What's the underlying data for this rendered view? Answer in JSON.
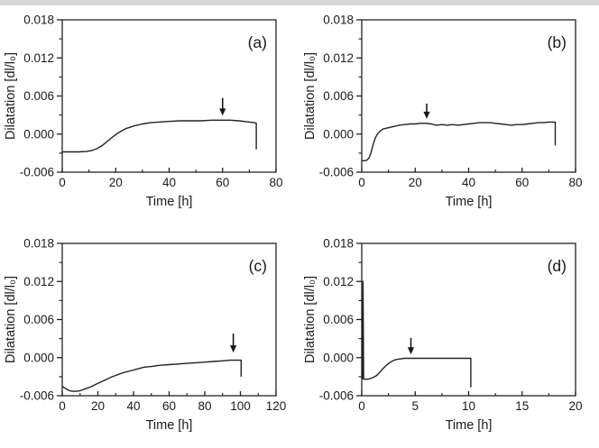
{
  "figure": {
    "background": "#ffffff",
    "edge_strip_color": "#d7d7d7",
    "axis_color": "#1a1a1a",
    "curve_color": "#222222",
    "text_color": "#1a1a1a"
  },
  "chart_data": [
    {
      "type": "line",
      "panel_label": "(a)",
      "xlabel": "Time [h]",
      "ylabel": "Dilatation [dl/l₀]",
      "xlim": [
        0,
        80
      ],
      "ylim": [
        -0.006,
        0.018
      ],
      "xticks": [
        0,
        20,
        40,
        60,
        80
      ],
      "xticklabels": [
        "0",
        "20",
        "40",
        "60",
        "80"
      ],
      "x_minor_step": 10,
      "yticks": [
        -0.006,
        0,
        0.006,
        0.012,
        0.018
      ],
      "yticklabels": [
        "-0.006",
        "0.000",
        "0.006",
        "0.012",
        "0.018"
      ],
      "y_minor_step": 0.003,
      "grid": false,
      "annotation_arrow": {
        "x": 60,
        "y_tail": 0.0057,
        "y_tip": 0.0029
      },
      "series": [
        {
          "name": "dilatation",
          "points": [
            [
              0,
              -0.0028
            ],
            [
              3,
              -0.0028
            ],
            [
              6,
              -0.0028
            ],
            [
              9,
              -0.00275
            ],
            [
              11,
              -0.0026
            ],
            [
              13,
              -0.0023
            ],
            [
              15,
              -0.0018
            ],
            [
              17,
              -0.0011
            ],
            [
              19,
              -0.0004
            ],
            [
              21,
              0.0002
            ],
            [
              24,
              0.0009
            ],
            [
              27,
              0.0013
            ],
            [
              30,
              0.0016
            ],
            [
              33,
              0.0018
            ],
            [
              36,
              0.0019
            ],
            [
              40,
              0.002
            ],
            [
              44,
              0.0021
            ],
            [
              48,
              0.0021
            ],
            [
              52,
              0.0021
            ],
            [
              56,
              0.0022
            ],
            [
              60,
              0.0022
            ],
            [
              63,
              0.0022
            ],
            [
              66,
              0.0021
            ],
            [
              68,
              0.002
            ],
            [
              70,
              0.0019
            ],
            [
              72,
              0.0018
            ],
            [
              72.6,
              0.0017
            ],
            [
              72.6,
              -0.0024
            ]
          ]
        }
      ]
    },
    {
      "type": "line",
      "panel_label": "(b)",
      "xlabel": "Time [h]",
      "ylabel": "Dilatation [dl/l₀]",
      "xlim": [
        0,
        80
      ],
      "ylim": [
        -0.006,
        0.018
      ],
      "xticks": [
        0,
        20,
        40,
        60,
        80
      ],
      "xticklabels": [
        "0",
        "20",
        "40",
        "60",
        "80"
      ],
      "x_minor_step": 10,
      "yticks": [
        -0.006,
        0,
        0.006,
        0.012,
        0.018
      ],
      "yticklabels": [
        "-0.006",
        "0.000",
        "0.006",
        "0.012",
        "0.018"
      ],
      "y_minor_step": 0.003,
      "grid": false,
      "annotation_arrow": {
        "x": 24.3,
        "y_tail": 0.0048,
        "y_tip": 0.0024
      },
      "series": [
        {
          "name": "dilatation",
          "points": [
            [
              0,
              -0.0042
            ],
            [
              1,
              -0.0042
            ],
            [
              2,
              -0.0041
            ],
            [
              2.8,
              -0.0037
            ],
            [
              3.4,
              -0.003
            ],
            [
              4,
              -0.0021
            ],
            [
              4.6,
              -0.0012
            ],
            [
              5.2,
              -0.0005
            ],
            [
              6,
              0.0001
            ],
            [
              7,
              0.0005
            ],
            [
              8,
              0.0008
            ],
            [
              10,
              0.001
            ],
            [
              12,
              0.0012
            ],
            [
              14,
              0.0014
            ],
            [
              16,
              0.0015
            ],
            [
              18,
              0.0016
            ],
            [
              20,
              0.0016
            ],
            [
              22,
              0.0017
            ],
            [
              24,
              0.0017
            ],
            [
              26,
              0.0016
            ],
            [
              28,
              0.0014
            ],
            [
              30,
              0.0015
            ],
            [
              32,
              0.0014
            ],
            [
              34,
              0.0015
            ],
            [
              36,
              0.0014
            ],
            [
              38,
              0.0015
            ],
            [
              40,
              0.0016
            ],
            [
              42,
              0.0017
            ],
            [
              44,
              0.0018
            ],
            [
              46,
              0.0018
            ],
            [
              48,
              0.0018
            ],
            [
              50,
              0.0017
            ],
            [
              52,
              0.0016
            ],
            [
              54,
              0.0015
            ],
            [
              56,
              0.0014
            ],
            [
              58,
              0.0015
            ],
            [
              60,
              0.0015
            ],
            [
              62,
              0.0016
            ],
            [
              64,
              0.0017
            ],
            [
              66,
              0.0018
            ],
            [
              68,
              0.0018
            ],
            [
              70,
              0.0019
            ],
            [
              72,
              0.0019
            ],
            [
              72.4,
              0.0019
            ],
            [
              72.4,
              -0.0018
            ]
          ]
        }
      ]
    },
    {
      "type": "line",
      "panel_label": "(c)",
      "xlabel": "Time [h]",
      "ylabel": "Dilatation [dl/l₀]",
      "xlim": [
        0,
        120
      ],
      "ylim": [
        -0.006,
        0.018
      ],
      "xticks": [
        0,
        20,
        40,
        60,
        80,
        100,
        120
      ],
      "xticklabels": [
        "0",
        "20",
        "40",
        "60",
        "80",
        "100",
        "120"
      ],
      "x_minor_step": 10,
      "yticks": [
        -0.006,
        0,
        0.006,
        0.012,
        0.018
      ],
      "yticklabels": [
        "-0.006",
        "0.000",
        "0.006",
        "0.012",
        "0.018"
      ],
      "y_minor_step": 0.003,
      "grid": false,
      "annotation_arrow": {
        "x": 96,
        "y_tail": 0.0038,
        "y_tip": 0.0008
      },
      "series": [
        {
          "name": "dilatation",
          "points": [
            [
              0,
              -0.0045
            ],
            [
              2,
              -0.0049
            ],
            [
              4,
              -0.0052
            ],
            [
              6,
              -0.0053
            ],
            [
              8,
              -0.0053
            ],
            [
              10,
              -0.0052
            ],
            [
              13,
              -0.0049
            ],
            [
              16,
              -0.0046
            ],
            [
              19,
              -0.0042
            ],
            [
              22,
              -0.0038
            ],
            [
              25,
              -0.0034
            ],
            [
              28,
              -0.003
            ],
            [
              31,
              -0.0027
            ],
            [
              34,
              -0.0024
            ],
            [
              38,
              -0.0021
            ],
            [
              42,
              -0.0018
            ],
            [
              46,
              -0.0015
            ],
            [
              50,
              -0.0014
            ],
            [
              55,
              -0.0012
            ],
            [
              60,
              -0.0011
            ],
            [
              65,
              -0.001
            ],
            [
              70,
              -0.0009
            ],
            [
              75,
              -0.0008
            ],
            [
              80,
              -0.0007
            ],
            [
              85,
              -0.0006
            ],
            [
              90,
              -0.0005
            ],
            [
              94,
              -0.0004
            ],
            [
              97,
              -0.0004
            ],
            [
              100,
              -0.0004
            ],
            [
              100.4,
              -0.0004
            ],
            [
              100.4,
              -0.003
            ]
          ]
        }
      ]
    },
    {
      "type": "line",
      "panel_label": "(d)",
      "xlabel": "Time [h]",
      "ylabel": "Dilatation [dl/l₀]",
      "xlim": [
        0,
        20
      ],
      "ylim": [
        -0.006,
        0.018
      ],
      "xticks": [
        0,
        5,
        10,
        15,
        20
      ],
      "xticklabels": [
        "0",
        "5",
        "10",
        "15",
        "20"
      ],
      "x_minor_step": 2.5,
      "yticks": [
        -0.006,
        0,
        0.006,
        0.012,
        0.018
      ],
      "yticklabels": [
        "-0.006",
        "0.000",
        "0.006",
        "0.012",
        "0.018"
      ],
      "y_minor_step": 0.003,
      "grid": false,
      "annotation_arrow": {
        "x": 4.6,
        "y_tail": 0.0031,
        "y_tip": 0.0005
      },
      "series": [
        {
          "name": "dilatation",
          "points": [
            [
              0,
              -0.0033
            ],
            [
              0.08,
              -0.0033
            ],
            [
              0.12,
              0.012
            ],
            [
              0.18,
              -0.0034
            ],
            [
              0.5,
              -0.0034
            ],
            [
              0.8,
              -0.0033
            ],
            [
              1.1,
              -0.0031
            ],
            [
              1.4,
              -0.0028
            ],
            [
              1.7,
              -0.0023
            ],
            [
              2,
              -0.0017
            ],
            [
              2.3,
              -0.0012
            ],
            [
              2.6,
              -0.0008
            ],
            [
              2.9,
              -0.0005
            ],
            [
              3.2,
              -0.0003
            ],
            [
              3.6,
              -0.0002
            ],
            [
              4,
              -0.0001
            ],
            [
              4.5,
              -0.0001
            ],
            [
              5,
              -0.0001
            ],
            [
              6,
              -0.0001
            ],
            [
              7,
              -0.0001
            ],
            [
              8,
              -0.0001
            ],
            [
              9,
              -0.0001
            ],
            [
              10,
              -0.0001
            ],
            [
              10.2,
              -0.0001
            ],
            [
              10.2,
              -0.0047
            ]
          ]
        }
      ]
    }
  ]
}
